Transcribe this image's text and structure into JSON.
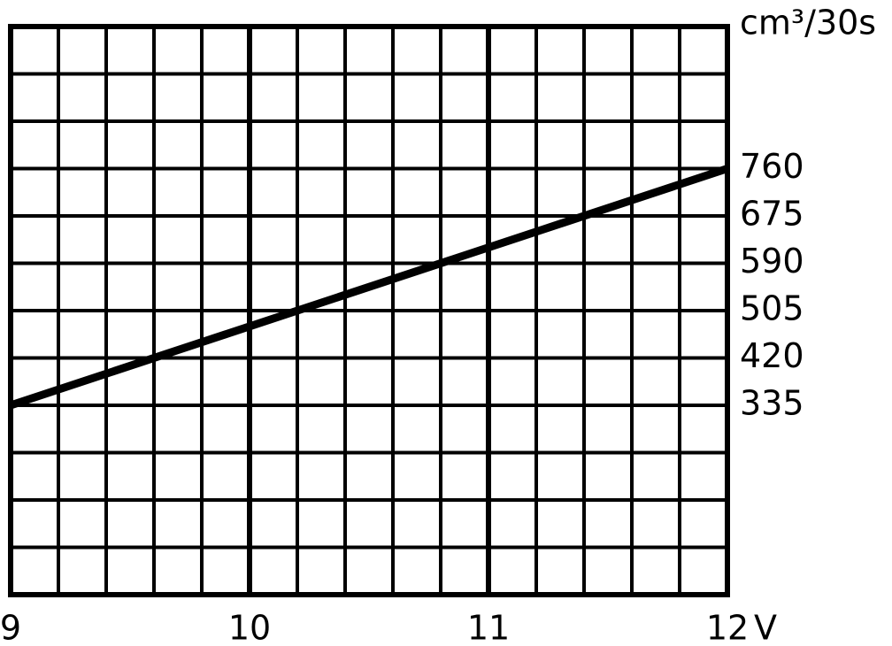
{
  "chart_data": {
    "type": "line",
    "x_label": "V",
    "y_label": "cm³/30s",
    "x": [
      9,
      12
    ],
    "series": [
      {
        "color": "#000000",
        "values": [
          335,
          760
        ]
      }
    ],
    "xlim": [
      9,
      12
    ],
    "xticks": [
      9,
      10,
      11,
      12
    ],
    "ylim": [
      -5,
      1015
    ],
    "yticks": [
      335,
      420,
      505,
      590,
      675,
      760
    ],
    "grid": true
  }
}
